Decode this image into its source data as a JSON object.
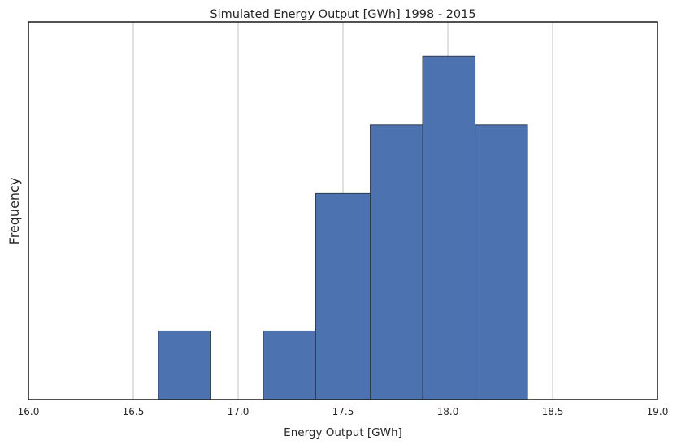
{
  "chart_data": {
    "type": "bar",
    "title": "Simulated Energy Output [GWh] 1998 - 2015",
    "xlabel": "Energy Output [GWh]",
    "ylabel": "Frequency",
    "xlim": [
      16.0,
      19.0
    ],
    "ylim": [
      0,
      5.5
    ],
    "x_ticks": [
      "16.0",
      "16.5",
      "17.0",
      "17.5",
      "18.0",
      "18.5",
      "19.0"
    ],
    "x_tick_values": [
      16.0,
      16.5,
      17.0,
      17.5,
      18.0,
      18.5,
      19.0
    ],
    "grid": "vertical",
    "color": "#4c72b0",
    "bins": [
      {
        "start": 16.62,
        "end": 16.87,
        "count": 1
      },
      {
        "start": 16.87,
        "end": 17.12,
        "count": 0
      },
      {
        "start": 17.12,
        "end": 17.37,
        "count": 1
      },
      {
        "start": 17.37,
        "end": 17.63,
        "count": 3
      },
      {
        "start": 17.63,
        "end": 17.88,
        "count": 4
      },
      {
        "start": 17.88,
        "end": 18.13,
        "count": 5
      },
      {
        "start": 18.13,
        "end": 18.38,
        "count": 4
      }
    ]
  }
}
